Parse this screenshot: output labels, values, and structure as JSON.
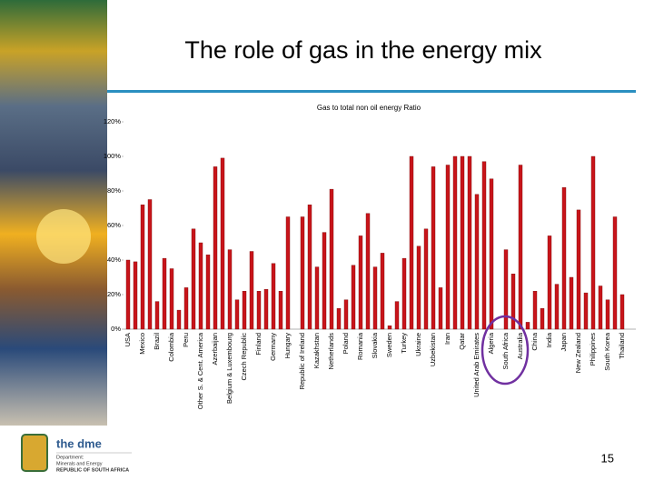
{
  "slide": {
    "title": "The role of gas in the energy mix",
    "logo_name": "the dme",
    "logo_department": "Department:",
    "logo_ministry": "Minerals and Energy",
    "logo_country": "REPUBLIC OF SOUTH AFRICA",
    "page_number": "15"
  },
  "chart_data": {
    "type": "bar",
    "title": "Gas to total non oil energy Ratio",
    "color": "#c8141a",
    "categories": [
      "USA",
      null,
      "Mexico",
      null,
      "Brazil",
      null,
      "Colombia",
      null,
      "Peru",
      null,
      "Other S. & Cent. America",
      null,
      "Azerbaijan",
      null,
      "Belgium & Luxembourg",
      null,
      "Czech Republic",
      null,
      "Finland",
      null,
      "Germany",
      null,
      "Hungary",
      null,
      "Republic of Ireland",
      null,
      "Kazakhstan",
      null,
      "Netherlands",
      null,
      "Poland",
      null,
      "Romania",
      null,
      "Slovakia",
      null,
      "Sweden",
      null,
      "Turkey",
      null,
      "Ukraine",
      null,
      "Uzbekistan",
      null,
      "Iran",
      null,
      "Qatar",
      null,
      "United Arab Emirates",
      null,
      "Algeria",
      null,
      "South Africa",
      null,
      "Australia",
      null,
      "China",
      null,
      "India",
      null,
      "Japan",
      null,
      "New Zealand",
      null,
      "Philippines",
      null,
      "South Korea",
      null,
      "Thailand",
      null
    ],
    "values": [
      40,
      39,
      72,
      75,
      16,
      41,
      35,
      11,
      24,
      58,
      50,
      43,
      94,
      99,
      46,
      17,
      22,
      45,
      22,
      23,
      38,
      22,
      65,
      0,
      65,
      72,
      36,
      56,
      81,
      12,
      17,
      37,
      54,
      67,
      36,
      44,
      2,
      16,
      41,
      100,
      48,
      58,
      94,
      24,
      95,
      100,
      100,
      100,
      78,
      97,
      87,
      0,
      46,
      32,
      95,
      4,
      22,
      12,
      54,
      26,
      82,
      30,
      69,
      21,
      100,
      25,
      17,
      65,
      20,
      0
    ],
    "ylim": [
      0,
      120
    ],
    "yticks": [
      {
        "value": 0,
        "label": "0%"
      },
      {
        "value": 20,
        "label": "20%"
      },
      {
        "value": 40,
        "label": "40%"
      },
      {
        "value": 60,
        "label": "60%"
      },
      {
        "value": 80,
        "label": "80%"
      },
      {
        "value": 100,
        "label": "100%"
      },
      {
        "value": 120,
        "label": "120%"
      }
    ],
    "grid": false
  }
}
